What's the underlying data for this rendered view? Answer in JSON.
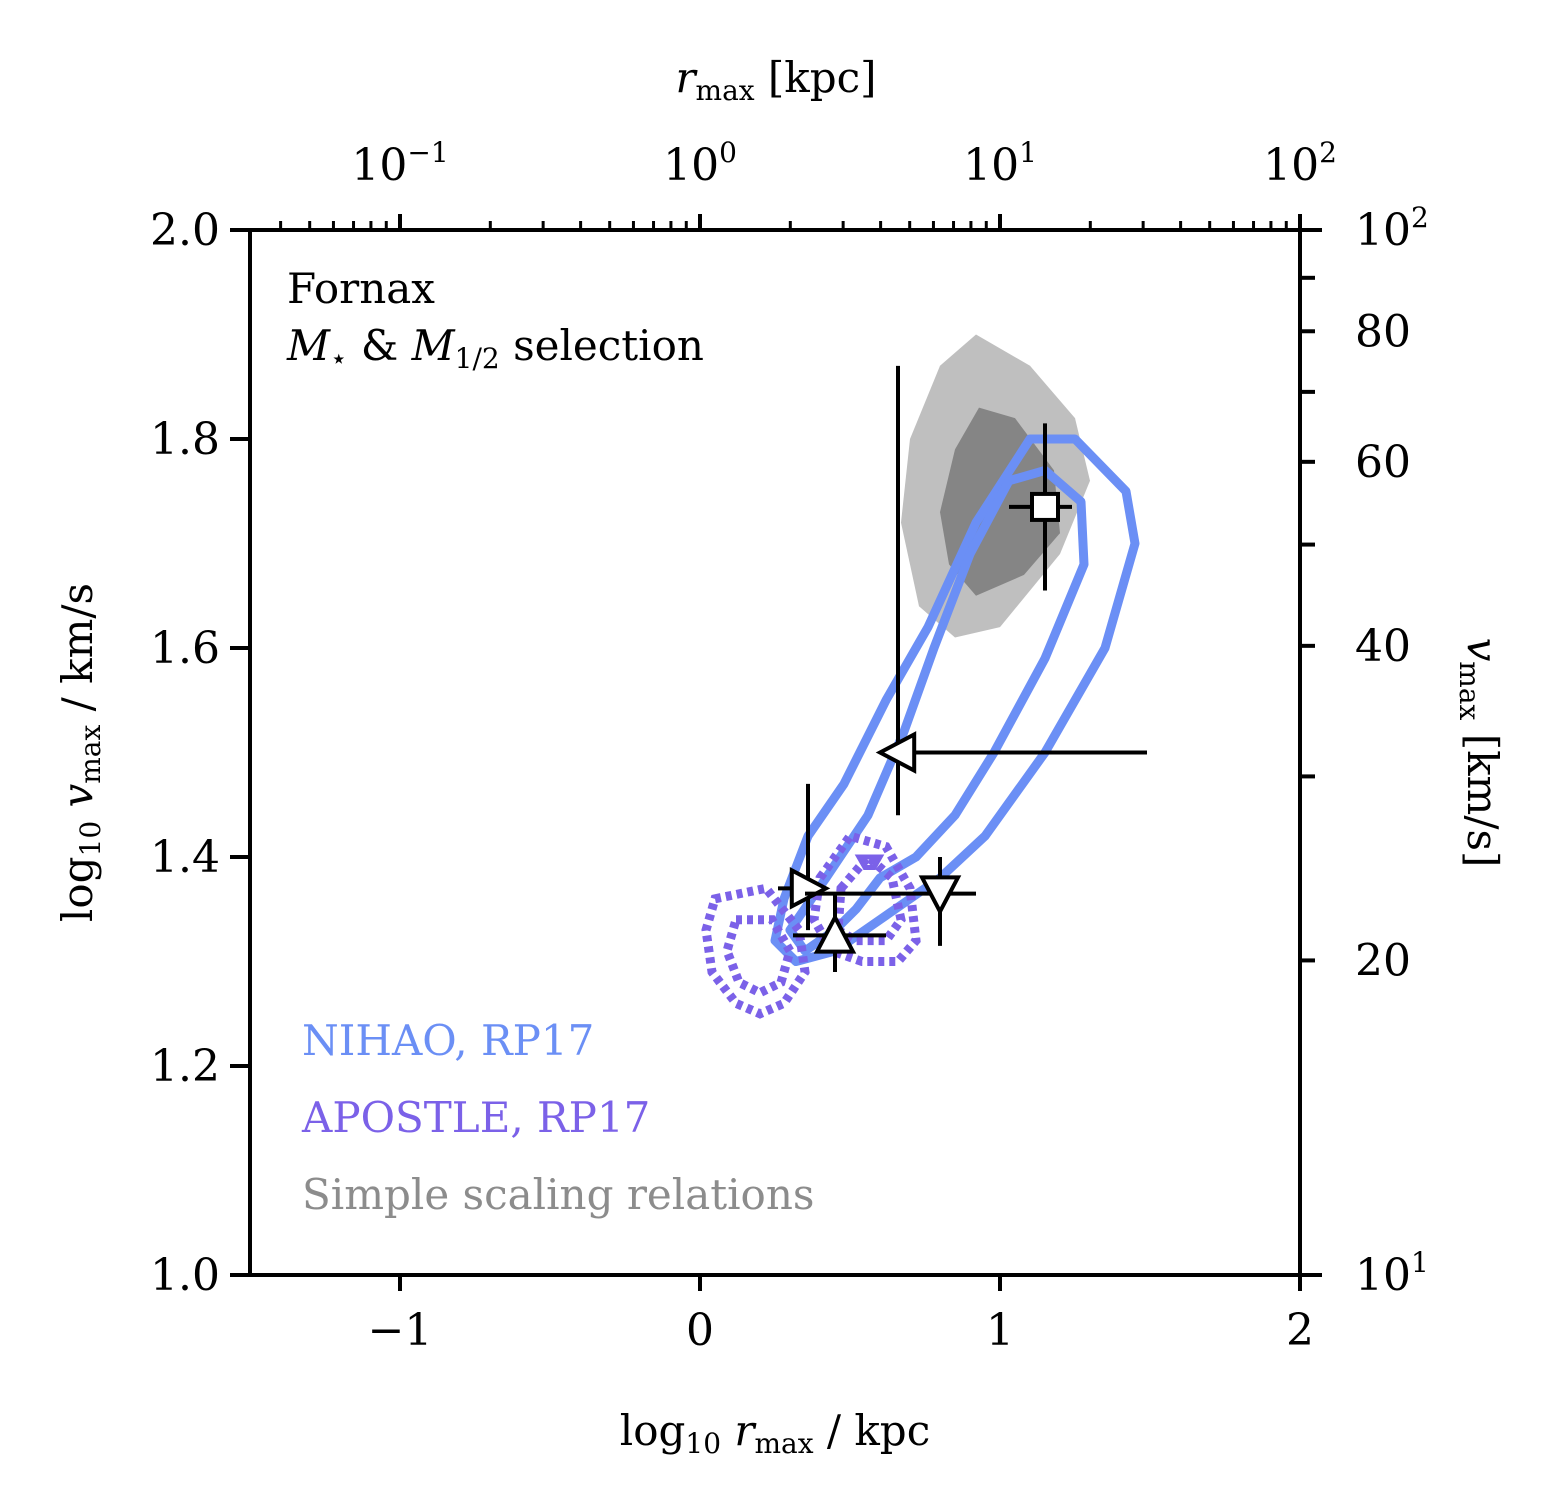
{
  "chart_data": {
    "type": "scatter",
    "title": "",
    "annotation": {
      "line1": "Fornax",
      "line2_sym": "M",
      "line2_star": "⋆",
      "line2_amp": " & ",
      "line2_sym2": "M",
      "line2_sub2": "1/2",
      "line2_rest": " selection"
    },
    "xlabel": {
      "pre": "log",
      "sub": "10",
      "sym": " r",
      "sym_sub": "max",
      "post": " / kpc"
    },
    "ylabel": {
      "pre": "log",
      "sub": "10",
      "sym": " v",
      "sym_sub": "max",
      "post": " / km/s"
    },
    "top_xlabel": {
      "sym": "r",
      "sym_sub": "max",
      "post": " [kpc]"
    },
    "right_ylabel": {
      "sym": "v",
      "sym_sub": "max",
      "post": " [km/s]"
    },
    "xlim": [
      -1.5,
      2.0
    ],
    "ylim": [
      1.0,
      2.0
    ],
    "xticks": [
      -1,
      0,
      1,
      2
    ],
    "xtick_labels": [
      "−1",
      "0",
      "1",
      "2"
    ],
    "yticks": [
      1.0,
      1.2,
      1.4,
      1.6,
      1.8,
      2.0
    ],
    "ytick_labels": [
      "1.0",
      "1.2",
      "1.4",
      "1.6",
      "1.8",
      "2.0"
    ],
    "top_xticks": [
      {
        "value": 0.1,
        "base": "10",
        "exp": "−1"
      },
      {
        "value": 1,
        "base": "10",
        "exp": "0"
      },
      {
        "value": 10,
        "base": "10",
        "exp": "1"
      },
      {
        "value": 100,
        "base": "10",
        "exp": "2"
      }
    ],
    "right_yticks": [
      {
        "value": 10,
        "label": "10",
        "exp": "1"
      },
      {
        "value": 20,
        "label": "20",
        "exp": ""
      },
      {
        "value": 40,
        "label": "40",
        "exp": ""
      },
      {
        "value": 60,
        "label": "60",
        "exp": ""
      },
      {
        "value": 80,
        "label": "80",
        "exp": ""
      },
      {
        "value": 100,
        "label": "10",
        "exp": "2"
      }
    ],
    "legend": [
      {
        "label": "NIHAO, RP17",
        "color": "#6b8ff5"
      },
      {
        "label": "APOSTLE, RP17",
        "color": "#7b61e8"
      },
      {
        "label": "Simple scaling relations",
        "color": "#8c8c8c"
      }
    ],
    "legend_position": "lower-left",
    "colors": {
      "gray_outer": "#bfbfbf",
      "gray_inner": "#858585",
      "nihao": "#6b8ff5",
      "apostle": "#7b61e8",
      "markers": "#000000"
    },
    "contours": {
      "gray_outer": [
        [
          0.92,
          1.9
        ],
        [
          0.8,
          1.87
        ],
        [
          0.7,
          1.8
        ],
        [
          0.67,
          1.72
        ],
        [
          0.73,
          1.64
        ],
        [
          0.85,
          1.61
        ],
        [
          1.0,
          1.62
        ],
        [
          1.2,
          1.69
        ],
        [
          1.3,
          1.76
        ],
        [
          1.25,
          1.82
        ],
        [
          1.1,
          1.87
        ]
      ],
      "gray_inner": [
        [
          0.93,
          1.83
        ],
        [
          0.85,
          1.79
        ],
        [
          0.8,
          1.73
        ],
        [
          0.83,
          1.68
        ],
        [
          0.92,
          1.65
        ],
        [
          1.08,
          1.67
        ],
        [
          1.2,
          1.71
        ],
        [
          1.18,
          1.77
        ],
        [
          1.05,
          1.82
        ]
      ],
      "nihao_outer": [
        [
          0.25,
          1.32
        ],
        [
          0.28,
          1.36
        ],
        [
          0.36,
          1.42
        ],
        [
          0.48,
          1.47
        ],
        [
          0.62,
          1.55
        ],
        [
          0.76,
          1.62
        ],
        [
          0.92,
          1.72
        ],
        [
          1.1,
          1.8
        ],
        [
          1.25,
          1.8
        ],
        [
          1.42,
          1.75
        ],
        [
          1.45,
          1.7
        ],
        [
          1.35,
          1.6
        ],
        [
          1.15,
          1.5
        ],
        [
          0.95,
          1.42
        ],
        [
          0.8,
          1.38
        ],
        [
          0.6,
          1.34
        ],
        [
          0.45,
          1.31
        ],
        [
          0.32,
          1.3
        ]
      ],
      "nihao_inner": [
        [
          0.3,
          1.33
        ],
        [
          0.42,
          1.38
        ],
        [
          0.56,
          1.44
        ],
        [
          0.68,
          1.52
        ],
        [
          0.78,
          1.6
        ],
        [
          0.9,
          1.69
        ],
        [
          1.03,
          1.76
        ],
        [
          1.15,
          1.77
        ],
        [
          1.27,
          1.74
        ],
        [
          1.28,
          1.68
        ],
        [
          1.15,
          1.59
        ],
        [
          0.98,
          1.5
        ],
        [
          0.85,
          1.44
        ],
        [
          0.72,
          1.4
        ],
        [
          0.6,
          1.38
        ],
        [
          0.52,
          1.35
        ],
        [
          0.45,
          1.33
        ],
        [
          0.35,
          1.31
        ]
      ],
      "apostle_a_outer": [
        [
          0.05,
          1.36
        ],
        [
          0.22,
          1.37
        ],
        [
          0.33,
          1.33
        ],
        [
          0.35,
          1.29
        ],
        [
          0.28,
          1.26
        ],
        [
          0.2,
          1.25
        ],
        [
          0.12,
          1.26
        ],
        [
          0.04,
          1.29
        ],
        [
          0.02,
          1.33
        ]
      ],
      "apostle_a_inner": [
        [
          0.12,
          1.34
        ],
        [
          0.24,
          1.34
        ],
        [
          0.3,
          1.31
        ],
        [
          0.27,
          1.28
        ],
        [
          0.2,
          1.27
        ],
        [
          0.13,
          1.28
        ],
        [
          0.09,
          1.31
        ]
      ],
      "apostle_b_outer": [
        [
          0.4,
          1.38
        ],
        [
          0.5,
          1.42
        ],
        [
          0.62,
          1.41
        ],
        [
          0.7,
          1.37
        ],
        [
          0.72,
          1.32
        ],
        [
          0.66,
          1.3
        ],
        [
          0.54,
          1.3
        ],
        [
          0.44,
          1.31
        ],
        [
          0.38,
          1.34
        ]
      ],
      "apostle_b_inner": [
        [
          0.47,
          1.37
        ],
        [
          0.56,
          1.4
        ],
        [
          0.64,
          1.38
        ],
        [
          0.67,
          1.34
        ],
        [
          0.62,
          1.32
        ],
        [
          0.52,
          1.32
        ],
        [
          0.46,
          1.33
        ]
      ],
      "apostle_c_inner": [
        [
          0.53,
          1.4
        ],
        [
          0.6,
          1.4
        ],
        [
          0.58,
          1.39
        ],
        [
          0.55,
          1.39
        ]
      ]
    },
    "points": [
      {
        "name": "square",
        "marker": "square",
        "x": 1.15,
        "y": 1.735,
        "xerr": [
          0.12,
          0.09
        ],
        "yerr": [
          0.08,
          0.08
        ]
      },
      {
        "name": "left-triangle",
        "marker": "triangle-left",
        "x": 0.66,
        "y": 1.5,
        "xerr": [
          0.0,
          0.83
        ],
        "yerr": [
          0.06,
          0.37
        ]
      },
      {
        "name": "right-triangle",
        "marker": "triangle-right",
        "x": 0.36,
        "y": 1.37,
        "xerr": [
          0.1,
          0.06
        ],
        "yerr": [
          0.04,
          0.1
        ]
      },
      {
        "name": "up-triangle",
        "marker": "triangle-up",
        "x": 0.45,
        "y": 1.325,
        "xerr": [
          0.14,
          0.17
        ],
        "yerr": [
          0.035,
          0.04
        ]
      },
      {
        "name": "down-triangle",
        "marker": "triangle-down",
        "x": 0.8,
        "y": 1.365,
        "xerr": [
          0.45,
          0.12
        ],
        "yerr": [
          0.05,
          0.035
        ]
      }
    ]
  }
}
